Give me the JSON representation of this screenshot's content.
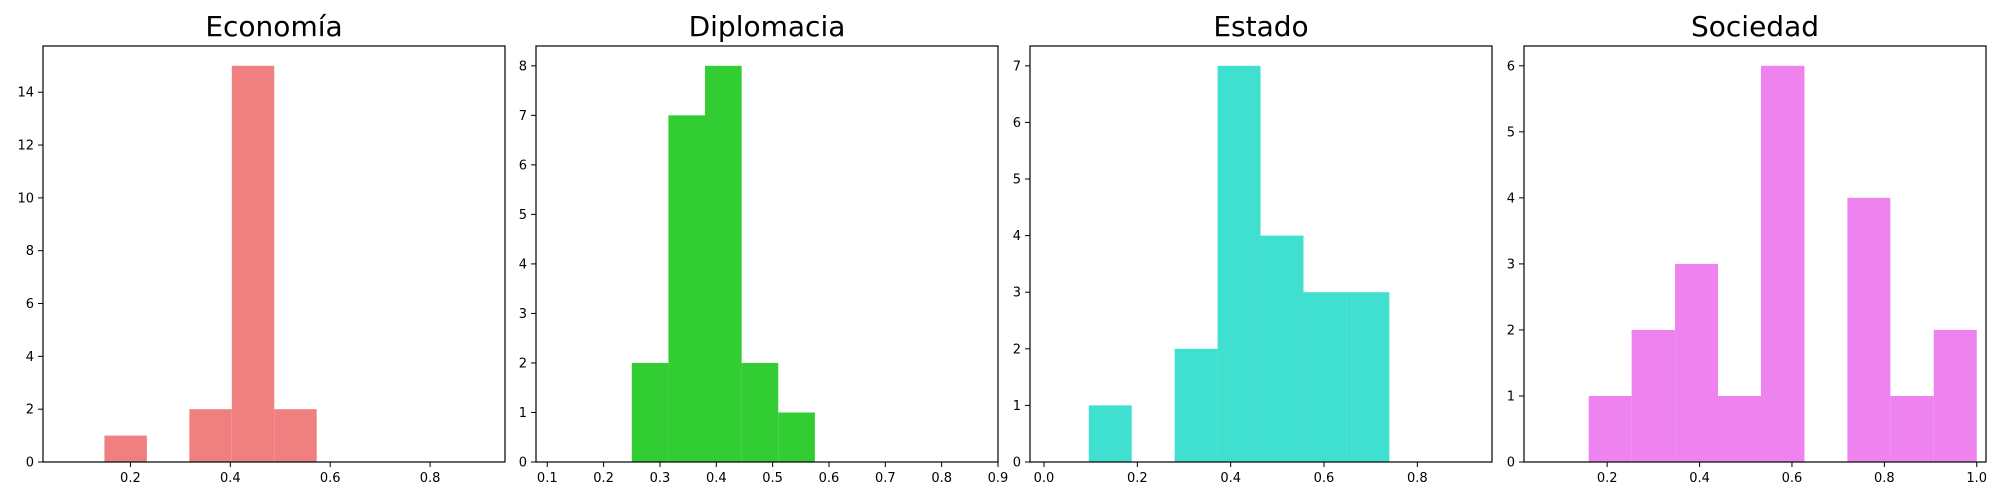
{
  "chart_data": [
    {
      "type": "bar",
      "title": "Economía",
      "color": "#f08080",
      "bins": [
        {
          "x0": 0.148,
          "x1": 0.233,
          "count": 1
        },
        {
          "x0": 0.318,
          "x1": 0.403,
          "count": 2
        },
        {
          "x0": 0.403,
          "x1": 0.488,
          "count": 15
        },
        {
          "x0": 0.488,
          "x1": 0.573,
          "count": 2
        }
      ],
      "xlim": [
        0.025,
        0.95
      ],
      "ylim": [
        0,
        15.75
      ],
      "xticks": [
        0.2,
        0.4,
        0.6,
        0.8
      ],
      "xtick_labels": [
        "0.2",
        "0.4",
        "0.6",
        "0.8"
      ],
      "yticks": [
        0,
        2,
        4,
        6,
        8,
        10,
        12,
        14
      ],
      "ytick_labels": [
        "0",
        "2",
        "4",
        "6",
        "8",
        "10",
        "12",
        "14"
      ]
    },
    {
      "type": "bar",
      "title": "Diplomacia",
      "color": "#32cd32",
      "bins": [
        {
          "x0": 0.25,
          "x1": 0.315,
          "count": 2
        },
        {
          "x0": 0.315,
          "x1": 0.38,
          "count": 7
        },
        {
          "x0": 0.38,
          "x1": 0.445,
          "count": 8
        },
        {
          "x0": 0.445,
          "x1": 0.51,
          "count": 2
        },
        {
          "x0": 0.51,
          "x1": 0.575,
          "count": 1
        }
      ],
      "xlim": [
        0.08,
        0.9
      ],
      "ylim": [
        0,
        8.4
      ],
      "xticks": [
        0.1,
        0.2,
        0.3,
        0.4,
        0.5,
        0.6,
        0.7,
        0.8,
        0.9
      ],
      "xtick_labels": [
        "0.1",
        "0.2",
        "0.3",
        "0.4",
        "0.5",
        "0.6",
        "0.7",
        "0.8",
        "0.9"
      ],
      "yticks": [
        0,
        1,
        2,
        3,
        4,
        5,
        6,
        7,
        8
      ],
      "ytick_labels": [
        "0",
        "1",
        "2",
        "3",
        "4",
        "5",
        "6",
        "7",
        "8"
      ]
    },
    {
      "type": "bar",
      "title": "Estado",
      "color": "#40e0d0",
      "bins": [
        {
          "x0": 0.096,
          "x1": 0.188,
          "count": 1
        },
        {
          "x0": 0.28,
          "x1": 0.372,
          "count": 2
        },
        {
          "x0": 0.372,
          "x1": 0.464,
          "count": 7
        },
        {
          "x0": 0.464,
          "x1": 0.556,
          "count": 4
        },
        {
          "x0": 0.556,
          "x1": 0.648,
          "count": 3
        },
        {
          "x0": 0.648,
          "x1": 0.74,
          "count": 3
        }
      ],
      "xlim": [
        -0.03,
        0.96
      ],
      "ylim": [
        0,
        7.35
      ],
      "xticks": [
        0.0,
        0.2,
        0.4,
        0.6,
        0.8
      ],
      "xtick_labels": [
        "0.0",
        "0.2",
        "0.4",
        "0.6",
        "0.8"
      ],
      "yticks": [
        0,
        1,
        2,
        3,
        4,
        5,
        6,
        7
      ],
      "ytick_labels": [
        "0",
        "1",
        "2",
        "3",
        "4",
        "5",
        "6",
        "7"
      ]
    },
    {
      "type": "bar",
      "title": "Sociedad",
      "color": "#ee82ee",
      "bins": [
        {
          "x0": 0.16,
          "x1": 0.253,
          "count": 1
        },
        {
          "x0": 0.253,
          "x1": 0.347,
          "count": 2
        },
        {
          "x0": 0.347,
          "x1": 0.44,
          "count": 3
        },
        {
          "x0": 0.44,
          "x1": 0.533,
          "count": 1
        },
        {
          "x0": 0.533,
          "x1": 0.627,
          "count": 6
        },
        {
          "x0": 0.72,
          "x1": 0.813,
          "count": 4
        },
        {
          "x0": 0.813,
          "x1": 0.907,
          "count": 1
        },
        {
          "x0": 0.907,
          "x1": 1.0,
          "count": 2
        }
      ],
      "xlim": [
        0.02,
        1.02
      ],
      "ylim": [
        0,
        6.3
      ],
      "xticks": [
        0.2,
        0.4,
        0.6,
        0.8,
        1.0
      ],
      "xtick_labels": [
        "0.2",
        "0.4",
        "0.6",
        "0.8",
        "1.0"
      ],
      "yticks": [
        0,
        1,
        2,
        3,
        4,
        5,
        6
      ],
      "ytick_labels": [
        "0",
        "1",
        "2",
        "3",
        "4",
        "5",
        "6"
      ]
    }
  ]
}
